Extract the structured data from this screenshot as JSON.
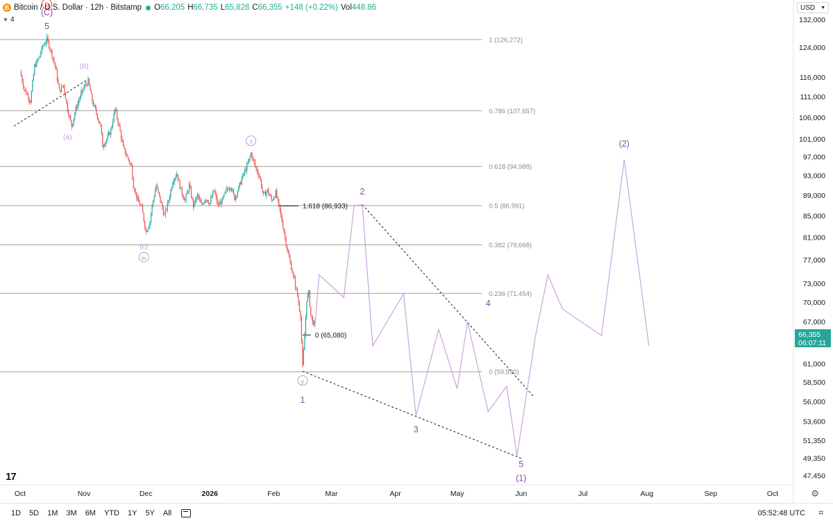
{
  "header": {
    "logo": "B",
    "symbol": "Bitcoin / U.S. Dollar · 12h · Bitstamp",
    "o_label": "O",
    "o": "66,205",
    "h_label": "H",
    "h": "66,735",
    "l_label": "L",
    "l": "65,828",
    "c_label": "C",
    "c": "66,355",
    "change": "+148 (+0.22%)",
    "vol_label": "Vol",
    "vol": "448.86",
    "indicator_count": "4"
  },
  "currency": "USD",
  "price_label": {
    "price": "66,355",
    "countdown": "06:07:11"
  },
  "bottom": {
    "ranges": [
      "1D",
      "5D",
      "1M",
      "3M",
      "6M",
      "YTD",
      "1Y",
      "5Y",
      "All"
    ],
    "time": "05:52:48 UTC"
  },
  "colors": {
    "up": "#26a69a",
    "down": "#ef5350",
    "projection": "#c9a3dd",
    "wave": "#8e44ad",
    "wave_light": "#c39bd3",
    "fib": "#9e9e9e",
    "label_red": "#e74c3c"
  },
  "chart_data": {
    "type": "line",
    "title": "Bitcoin / U.S. Dollar · 12h · Bitstamp",
    "ylim": [
      46500,
      138000
    ],
    "y_ticks": [
      132000,
      124000,
      116000,
      111000,
      106000,
      101000,
      97000,
      93000,
      89000,
      85000,
      81000,
      77000,
      73000,
      70000,
      67000,
      64000,
      61000,
      58500,
      56000,
      53600,
      51350,
      49350,
      47450
    ],
    "y_tick_labels": [
      "132,000",
      "124,000",
      "116,000",
      "111,000",
      "106,000",
      "101,000",
      "97,000",
      "93,000",
      "89,000",
      "85,000",
      "81,000",
      "77,000",
      "73,000",
      "70,000",
      "67,000",
      "64,000",
      "61,000",
      "58,500",
      "56,000",
      "53,600",
      "51,350",
      "49,350",
      "47,450"
    ],
    "x_labels": [
      "Oct",
      "Nov",
      "Dec",
      "2026",
      "Feb",
      "Mar",
      "Apr",
      "May",
      "Jun",
      "Jul",
      "Aug",
      "Sep",
      "Oct"
    ],
    "x_label_days": [
      0,
      31,
      61,
      92,
      123,
      151,
      182,
      212,
      243,
      273,
      304,
      335,
      365
    ],
    "price_path": [
      [
        0,
        117500
      ],
      [
        2,
        113000
      ],
      [
        5,
        110000
      ],
      [
        7,
        119000
      ],
      [
        9,
        121000
      ],
      [
        11,
        124500
      ],
      [
        13,
        126272
      ],
      [
        15,
        123000
      ],
      [
        17,
        119000
      ],
      [
        19,
        112500
      ],
      [
        21,
        114000
      ],
      [
        23,
        108000
      ],
      [
        25,
        104000
      ],
      [
        27,
        108000
      ],
      [
        29,
        111000
      ],
      [
        31,
        113500
      ],
      [
        33,
        115000
      ],
      [
        35,
        110000
      ],
      [
        37,
        107000
      ],
      [
        39,
        104000
      ],
      [
        40,
        99500
      ],
      [
        42,
        101000
      ],
      [
        44,
        103000
      ],
      [
        46,
        108000
      ],
      [
        48,
        104000
      ],
      [
        50,
        99000
      ],
      [
        52,
        97000
      ],
      [
        54,
        95000
      ],
      [
        55,
        91000
      ],
      [
        57,
        88000
      ],
      [
        59,
        86500
      ],
      [
        61,
        82000
      ],
      [
        63,
        84000
      ],
      [
        64,
        87000
      ],
      [
        66,
        91000
      ],
      [
        68,
        88000
      ],
      [
        70,
        85000
      ],
      [
        72,
        88000
      ],
      [
        74,
        92000
      ],
      [
        76,
        93500
      ],
      [
        78,
        90000
      ],
      [
        80,
        88000
      ],
      [
        82,
        91000
      ],
      [
        84,
        87000
      ],
      [
        86,
        89000
      ],
      [
        88,
        87000
      ],
      [
        90,
        88500
      ],
      [
        92,
        87500
      ],
      [
        94,
        90000
      ],
      [
        96,
        87000
      ],
      [
        98,
        88000
      ],
      [
        100,
        90000
      ],
      [
        102,
        91000
      ],
      [
        104,
        88500
      ],
      [
        106,
        90500
      ],
      [
        108,
        93000
      ],
      [
        110,
        95000
      ],
      [
        112,
        97800
      ],
      [
        114,
        95000
      ],
      [
        116,
        93000
      ],
      [
        118,
        89000
      ],
      [
        120,
        90000
      ],
      [
        122,
        88000
      ],
      [
        124,
        89500
      ],
      [
        126,
        86000
      ],
      [
        128,
        82000
      ],
      [
        130,
        78000
      ],
      [
        132,
        75000
      ],
      [
        134,
        72000
      ],
      [
        136,
        68000
      ],
      [
        137,
        60500
      ],
      [
        138,
        65000
      ],
      [
        139,
        70500
      ],
      [
        140,
        71500
      ],
      [
        141,
        68000
      ],
      [
        142,
        67000
      ],
      [
        143,
        66355
      ]
    ],
    "projection_path": [
      [
        143,
        66355
      ],
      [
        145,
        74500
      ],
      [
        157,
        70800
      ],
      [
        162,
        87000
      ],
      [
        166,
        87200
      ],
      [
        171,
        63500
      ],
      [
        186,
        71400
      ],
      [
        192,
        54300
      ],
      [
        203,
        65900
      ],
      [
        212,
        57700
      ],
      [
        217,
        67000
      ],
      [
        227,
        54800
      ],
      [
        236,
        58000
      ],
      [
        241,
        49600
      ],
      [
        250,
        65000
      ],
      [
        256,
        74500
      ],
      [
        263,
        69000
      ],
      [
        282,
        65000
      ],
      [
        293,
        96500
      ],
      [
        305,
        63500
      ]
    ],
    "trendlines": [
      {
        "name": "b-trendline",
        "from": [
          -3,
          104000
        ],
        "to": [
          32,
          115200
        ]
      },
      {
        "name": "upper-wedge",
        "from": [
          166,
          87200
        ],
        "to": [
          249,
          56700
        ]
      },
      {
        "name": "lower-wedge",
        "from": [
          137,
          60000
        ],
        "to": [
          243,
          49350
        ]
      }
    ],
    "fib_levels": [
      {
        "ratio": "1",
        "price": 126272,
        "label": "1 (126,272)"
      },
      {
        "ratio": "0.786",
        "price": 107657,
        "label": "0.786 (107,657)"
      },
      {
        "ratio": "0.618",
        "price": 94988,
        "label": "0.618 (94,988)"
      },
      {
        "ratio": "0.5",
        "price": 86991,
        "label": "0.5 (86,991)"
      },
      {
        "ratio": "0.382",
        "price": 79668,
        "label": "0.382 (79,668)"
      },
      {
        "ratio": "0.236",
        "price": 71454,
        "label": "0.236 (71,454)"
      },
      {
        "ratio": "0",
        "price": 59930,
        "label": "0 (59,930)"
      }
    ],
    "extension_levels": [
      {
        "price": 86933,
        "label": "1.618 (86,933)"
      },
      {
        "price": 65080,
        "label": "0 (65,080)"
      }
    ],
    "wave_labels": [
      {
        "text": "B",
        "day": 13,
        "price": 135900,
        "style": "red-circle"
      },
      {
        "text": "(C)",
        "day": 13,
        "price": 133400,
        "style": "dark"
      },
      {
        "text": "5",
        "day": 13,
        "price": 129300,
        "style": "dark"
      },
      {
        "text": "(b)",
        "day": 31,
        "price": 118400,
        "style": "light"
      },
      {
        "text": "(a)",
        "day": 23,
        "price": 101000,
        "style": "light"
      },
      {
        "text": "x",
        "day": 112,
        "price": 100000,
        "style": "light-circle"
      },
      {
        "text": "(c)",
        "day": 60,
        "price": 79000,
        "style": "light"
      },
      {
        "text": "w",
        "day": 60,
        "price": 77000,
        "style": "light-circle"
      },
      {
        "text": "y",
        "day": 137,
        "price": 58400,
        "style": "light-circle"
      },
      {
        "text": "1",
        "day": 137,
        "price": 55900,
        "style": "dark"
      },
      {
        "text": "2",
        "day": 166,
        "price": 89200,
        "style": "dark"
      },
      {
        "text": "3",
        "day": 192,
        "price": 52300,
        "style": "dark"
      },
      {
        "text": "4",
        "day": 227,
        "price": 69400,
        "style": "dark"
      },
      {
        "text": "5",
        "day": 243,
        "price": 48400,
        "style": "dark"
      },
      {
        "text": "(1)",
        "day": 243,
        "price": 46900,
        "style": "dark"
      },
      {
        "text": "(2)",
        "day": 293,
        "price": 99300,
        "style": "dark"
      }
    ]
  }
}
